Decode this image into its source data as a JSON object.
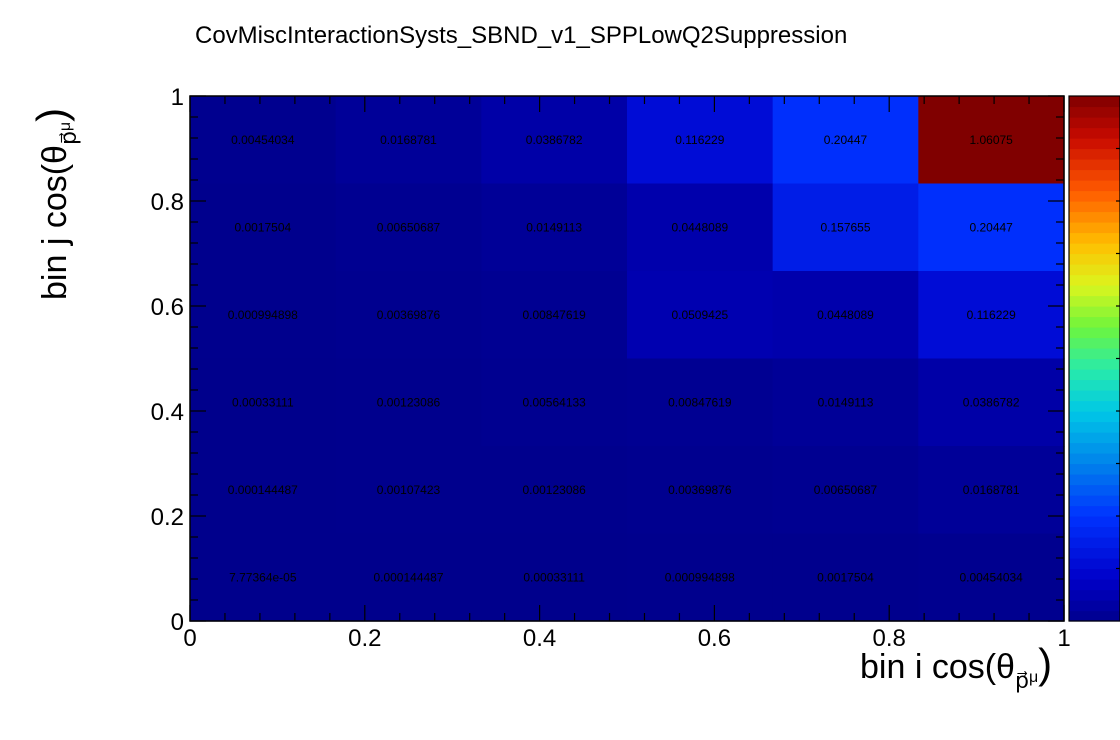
{
  "chart_data": {
    "type": "heatmap",
    "title": "CovMiscInteractionSysts_SBND_v1_SPPLowQ2Suppression",
    "xlabel": {
      "prefix": "bin i cos(θ",
      "sub": "p⃗",
      "subsub": "μ",
      "suffix": ")"
    },
    "ylabel": {
      "prefix": "bin j cos(θ",
      "sub": "p⃗",
      "subsub": "μ",
      "suffix": ")"
    },
    "xlim": [
      0,
      1
    ],
    "ylim": [
      0,
      1
    ],
    "x_ticks": [
      "0",
      "0.2",
      "0.4",
      "0.6",
      "0.8",
      "1"
    ],
    "y_ticks": [
      "0",
      "0.2",
      "0.4",
      "0.6",
      "0.8",
      "1"
    ],
    "x_tick_values": [
      0,
      0.2,
      0.4,
      0.6,
      0.8,
      1
    ],
    "y_tick_values": [
      0,
      0.2,
      0.4,
      0.6,
      0.8,
      1
    ],
    "x_edges": [
      0,
      0.16667,
      0.33333,
      0.5,
      0.66667,
      0.83333,
      1
    ],
    "y_edges": [
      0,
      0.16667,
      0.33333,
      0.5,
      0.66667,
      0.83333,
      1
    ],
    "colorscale": "rainbow (blue to dark red)",
    "zlim": [
      0,
      1.06075
    ],
    "rows_top_to_bottom": [
      {
        "labels": [
          "0.00454034",
          "0.0168781",
          "0.0386782",
          "0.116229",
          "0.20447",
          "1.06075"
        ],
        "values": [
          0.00454034,
          0.0168781,
          0.0386782,
          0.116229,
          0.20447,
          1.06075
        ]
      },
      {
        "labels": [
          "0.0017504",
          "0.00650687",
          "0.0149113",
          "0.0448089",
          "0.157655",
          "0.20447"
        ],
        "values": [
          0.0017504,
          0.00650687,
          0.0149113,
          0.0448089,
          0.157655,
          0.20447
        ]
      },
      {
        "labels": [
          "0.000994898",
          "0.00369876",
          "0.00847619",
          "0.0509425",
          "0.0448089",
          "0.116229"
        ],
        "values": [
          0.000994898,
          0.00369876,
          0.00847619,
          0.0509425,
          0.0448089,
          0.116229
        ]
      },
      {
        "labels": [
          "0.00033111",
          "0.00123086",
          "0.00564133",
          "0.00847619",
          "0.0149113",
          "0.0386782"
        ],
        "values": [
          0.00033111,
          0.00123086,
          0.00564133,
          0.00847619,
          0.0149113,
          0.0386782
        ]
      },
      {
        "labels": [
          "0.000144487",
          "0.00107423",
          "0.00123086",
          "0.00369876",
          "0.00650687",
          "0.0168781"
        ],
        "values": [
          0.000144487,
          0.00107423,
          0.00123086,
          0.00369876,
          0.00650687,
          0.0168781
        ]
      },
      {
        "labels": [
          "7.77364e-05",
          "0.000144487",
          "0.00033111",
          "0.000994898",
          "0.0017504",
          "0.00454034"
        ],
        "values": [
          7.77364e-05,
          0.000144487,
          0.00033111,
          0.000994898,
          0.0017504,
          0.00454034
        ]
      }
    ]
  }
}
